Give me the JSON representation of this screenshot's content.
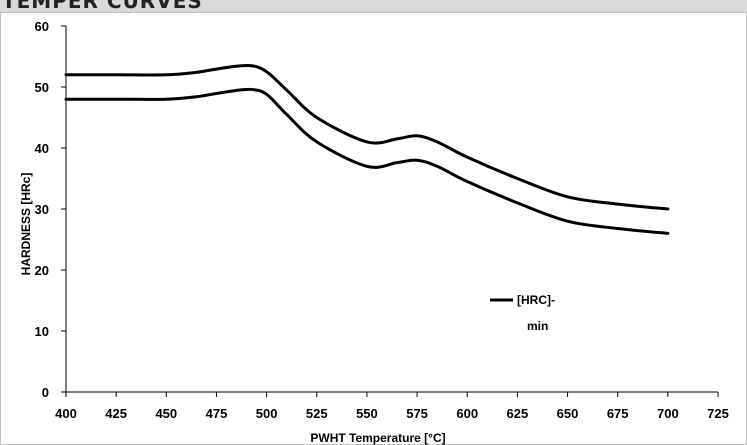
{
  "header": {
    "title": "TEMPER CURVES"
  },
  "chart_data": {
    "type": "line",
    "xlabel": "PWHT Temperature [°C]",
    "ylabel": "HARDNESS [HRc]",
    "xlim": [
      400,
      725
    ],
    "ylim": [
      0,
      60
    ],
    "x_ticks": [
      400,
      425,
      450,
      475,
      500,
      525,
      550,
      575,
      600,
      625,
      650,
      675,
      700,
      725
    ],
    "y_ticks": [
      0,
      10,
      20,
      30,
      40,
      50,
      60
    ],
    "grid": false,
    "legend": {
      "position": "right",
      "entries": [
        "[HRC]-",
        "min"
      ]
    },
    "series": [
      {
        "color": "#000000",
        "x": [
          400,
          425,
          450,
          465,
          480,
          492,
          500,
          510,
          525,
          550,
          565,
          575,
          585,
          600,
          625,
          650,
          675,
          700
        ],
        "y": [
          52,
          52,
          52,
          52.4,
          53.2,
          53.5,
          52.5,
          49.5,
          45,
          41,
          41.5,
          42,
          41,
          38.5,
          35,
          32,
          30.8,
          30
        ]
      },
      {
        "name": "[HRC]-min",
        "color": "#000000",
        "x": [
          400,
          425,
          450,
          465,
          480,
          492,
          500,
          510,
          525,
          550,
          565,
          575,
          585,
          600,
          625,
          650,
          675,
          700
        ],
        "y": [
          48,
          48,
          48,
          48.4,
          49.2,
          49.6,
          48.8,
          45.5,
          41,
          37,
          37.6,
          38,
          37,
          34.5,
          31,
          28,
          26.8,
          26
        ]
      }
    ]
  }
}
